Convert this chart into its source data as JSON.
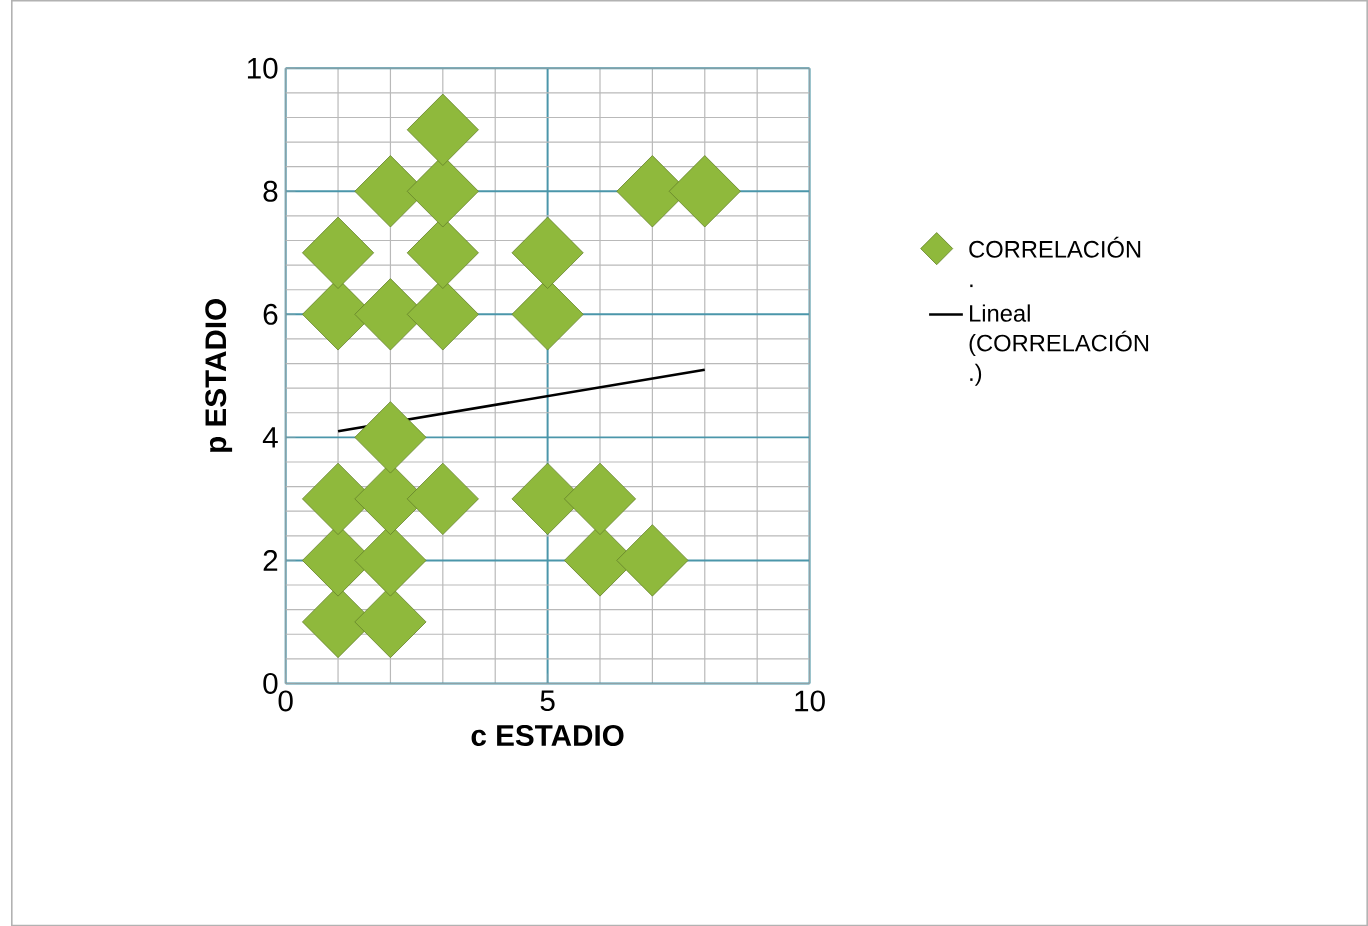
{
  "chart_data": {
    "type": "scatter",
    "xlabel": "c ESTADIO",
    "ylabel": "p ESTADIO",
    "xlim": [
      0,
      10
    ],
    "xticks": [
      0,
      5,
      10
    ],
    "ylim": [
      0,
      10
    ],
    "yticks": [
      0,
      2,
      4,
      6,
      8,
      10
    ],
    "grid": true,
    "legend": "right",
    "marker": "diamond",
    "series": [
      {
        "name": "CORRELACIÓN .",
        "color": "#8fb93c",
        "x": [
          1,
          1,
          1,
          1,
          1,
          2,
          2,
          2,
          2,
          2,
          2,
          3,
          3,
          3,
          3,
          3,
          5,
          5,
          5,
          6,
          6,
          7,
          7,
          8
        ],
        "values": [
          1,
          2,
          3,
          6,
          7,
          1,
          2,
          3,
          4,
          6,
          8,
          3,
          6,
          7,
          8,
          9,
          3,
          6,
          7,
          2,
          3,
          2,
          8,
          8
        ]
      },
      {
        "name": "Lineal (CORRELACIÓN .)",
        "type": "line",
        "marker": "none",
        "color": "#000000",
        "x": [
          1,
          8
        ],
        "values": [
          4.1,
          5.1
        ]
      }
    ]
  }
}
